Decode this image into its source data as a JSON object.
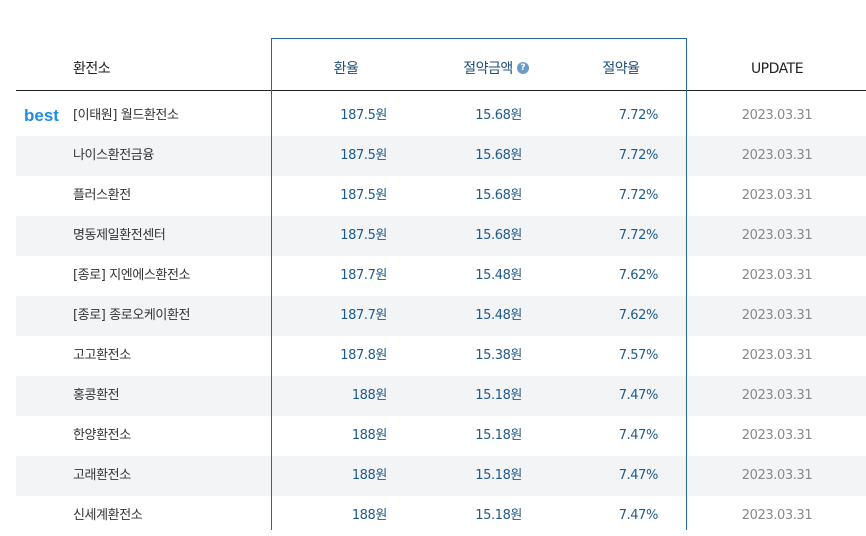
{
  "header": {
    "name": "환전소",
    "rate": "환율",
    "save": "절약금액",
    "help_icon": "?",
    "ratio": "절약율",
    "update": "UPDATE"
  },
  "best_label": "best",
  "rows": [
    {
      "name": "[이태원] 월드환전소",
      "rate": "187.5원",
      "save": "15.68원",
      "ratio": "7.72%",
      "update": "2023.03.31"
    },
    {
      "name": "나이스환전금융",
      "rate": "187.5원",
      "save": "15.68원",
      "ratio": "7.72%",
      "update": "2023.03.31"
    },
    {
      "name": "플러스환전",
      "rate": "187.5원",
      "save": "15.68원",
      "ratio": "7.72%",
      "update": "2023.03.31"
    },
    {
      "name": "명동제일환전센터",
      "rate": "187.5원",
      "save": "15.68원",
      "ratio": "7.72%",
      "update": "2023.03.31"
    },
    {
      "name": "[종로] 지엔에스환전소",
      "rate": "187.7원",
      "save": "15.48원",
      "ratio": "7.62%",
      "update": "2023.03.31"
    },
    {
      "name": "[종로] 종로오케이환전",
      "rate": "187.7원",
      "save": "15.48원",
      "ratio": "7.62%",
      "update": "2023.03.31"
    },
    {
      "name": "고고환전소",
      "rate": "187.8원",
      "save": "15.38원",
      "ratio": "7.57%",
      "update": "2023.03.31"
    },
    {
      "name": "홍콩환전",
      "rate": "188원",
      "save": "15.18원",
      "ratio": "7.47%",
      "update": "2023.03.31"
    },
    {
      "name": "한양환전소",
      "rate": "188원",
      "save": "15.18원",
      "ratio": "7.47%",
      "update": "2023.03.31"
    },
    {
      "name": "고래환전소",
      "rate": "188원",
      "save": "15.18원",
      "ratio": "7.47%",
      "update": "2023.03.31"
    },
    {
      "name": "신세계환전소",
      "rate": "188원",
      "save": "15.18원",
      "ratio": "7.47%",
      "update": "2023.03.31"
    }
  ],
  "colors": {
    "accent": "#1e8fe6",
    "value_text": "#1f5a8a",
    "highlight_border": "#2a6a96",
    "alt_row": "#f3f4f6"
  }
}
